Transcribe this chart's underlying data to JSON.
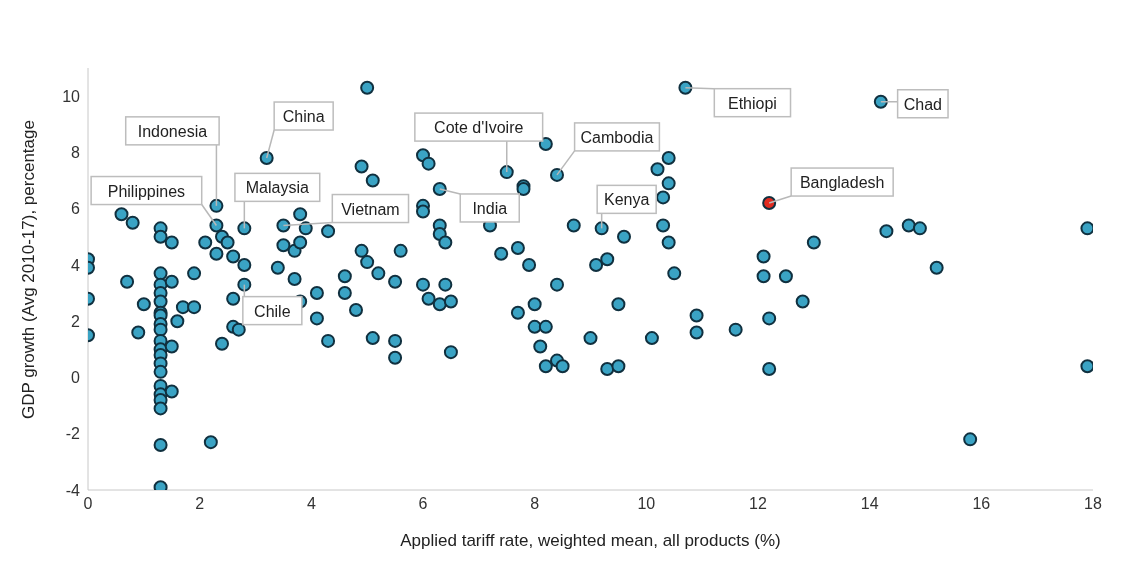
{
  "chart_data": {
    "type": "scatter",
    "xlabel": "Applied tariff rate, weighted mean, all products (%)",
    "ylabel": "GDP growth (Avg 2010-17), percentage",
    "xlim": [
      0,
      18
    ],
    "xticks": [
      0,
      2,
      4,
      6,
      8,
      10,
      12,
      14,
      16,
      18
    ],
    "ylim": [
      -4,
      11
    ],
    "yticks": [
      -4,
      -2,
      0,
      2,
      4,
      6,
      8,
      10
    ],
    "marker": "circle",
    "series": [
      {
        "color": "#3aa3c4",
        "x": [
          0,
          0,
          0,
          0,
          0.6,
          0.8,
          0.7,
          0.9,
          1.0,
          1.3,
          1.3,
          1.3,
          1.3,
          1.3,
          1.3,
          1.3,
          1.3,
          1.3,
          1.3,
          1.3,
          1.3,
          1.3,
          1.3,
          1.3,
          1.3,
          1.3,
          1.3,
          1.3,
          1.3,
          1.3,
          1.5,
          1.5,
          1.5,
          1.5,
          1.6,
          1.7,
          1.9,
          1.9,
          2.2,
          2.3,
          2.3,
          2.1,
          2.4,
          2.5,
          2.3,
          2.6,
          2.8,
          2.6,
          2.4,
          2.6,
          2.7,
          2.8,
          2.8,
          3.2,
          3.5,
          3.8,
          3.9,
          4.3,
          3.5,
          3.7,
          3.8,
          4.9,
          3.4,
          3.7,
          4.1,
          4.1,
          4.3,
          4.6,
          4.6,
          4.8,
          3.8,
          4.9,
          5.0,
          5.1,
          5.0,
          5.2,
          5.5,
          5.6,
          5.1,
          5.5,
          5.5,
          6.0,
          6.1,
          6.0,
          6.0,
          6.3,
          6.3,
          6.3,
          6.4,
          6.0,
          6.4,
          6.1,
          6.3,
          6.5,
          6.5,
          7.2,
          7.4,
          7.5,
          7.7,
          7.8,
          7.8,
          7.9,
          7.7,
          8.0,
          8.0,
          8.2,
          8.1,
          8.2,
          8.4,
          8.5,
          8.2,
          8.4,
          8.4,
          8.7,
          9.2,
          9.6,
          9.1,
          9.3,
          9.5,
          9.0,
          9.3,
          9.5,
          10.2,
          10.4,
          10.4,
          10.3,
          10.3,
          10.4,
          10.5,
          10.1,
          10.7,
          10.9,
          10.9,
          11.6,
          12.1,
          12.1,
          12.5,
          12.8,
          12.2,
          12.2,
          13.0,
          14.2,
          14.3,
          14.7,
          14.9,
          15.2,
          15.8,
          17.9,
          17.9
        ],
        "values": [
          4.2,
          3.9,
          2.8,
          1.5,
          5.8,
          5.5,
          3.4,
          1.6,
          2.6,
          5.3,
          3.7,
          3.3,
          3.0,
          2.7,
          2.3,
          2.2,
          1.9,
          1.7,
          1.3,
          1.0,
          0.8,
          0.5,
          0.2,
          -0.3,
          -0.6,
          -0.8,
          -1.1,
          -2.4,
          -3.9,
          5.0,
          4.8,
          3.4,
          1.1,
          -0.5,
          2.0,
          2.5,
          2.5,
          3.7,
          -2.3,
          6.1,
          5.4,
          4.8,
          5.0,
          4.8,
          4.4,
          4.3,
          5.3,
          2.8,
          1.2,
          1.8,
          1.7,
          4.0,
          3.3,
          7.8,
          5.4,
          5.8,
          5.3,
          5.2,
          4.7,
          4.5,
          4.8,
          4.5,
          3.9,
          3.5,
          3.0,
          2.1,
          1.3,
          3.6,
          3.0,
          2.4,
          2.7,
          7.5,
          10.3,
          7.0,
          4.1,
          3.7,
          3.4,
          4.5,
          1.4,
          1.3,
          0.7,
          7.9,
          7.6,
          6.1,
          5.9,
          6.7,
          5.4,
          5.1,
          4.8,
          3.3,
          3.3,
          2.8,
          2.6,
          2.7,
          0.9,
          5.4,
          4.4,
          7.3,
          4.6,
          6.8,
          6.7,
          4.0,
          2.3,
          2.6,
          1.8,
          1.8,
          1.1,
          0.4,
          0.6,
          0.4,
          8.3,
          7.2,
          3.3,
          5.4,
          5.3,
          5.0,
          4.0,
          4.2,
          2.6,
          1.4,
          0.3,
          0.4,
          7.4,
          7.8,
          6.9,
          6.4,
          5.4,
          4.8,
          3.7,
          1.4,
          10.3,
          2.2,
          1.6,
          1.7,
          4.3,
          3.6,
          3.6,
          2.7,
          2.1,
          0.3,
          4.8,
          9.8,
          5.2,
          5.4,
          5.3,
          3.9,
          -2.2,
          5.3,
          0.4
        ]
      },
      {
        "color": "#e02b20",
        "x": [
          12.2
        ],
        "values": [
          6.2
        ]
      }
    ],
    "annotations": [
      {
        "text": "China",
        "x": 3.2,
        "y": 7.8
      },
      {
        "text": "Indonesia",
        "x": 2.3,
        "y": 6.1
      },
      {
        "text": "Philippines",
        "x": 2.3,
        "y": 5.4
      },
      {
        "text": "Malaysia",
        "x": 2.8,
        "y": 5.3
      },
      {
        "text": "Vietnam",
        "x": 3.5,
        "y": 5.4
      },
      {
        "text": "Chile",
        "x": 2.8,
        "y": 3.3
      },
      {
        "text": "Cote d'Ivoire",
        "x": 7.5,
        "y": 7.3
      },
      {
        "text": "Cambodia",
        "x": 8.4,
        "y": 7.2
      },
      {
        "text": "India",
        "x": 6.3,
        "y": 6.7
      },
      {
        "text": "Kenya",
        "x": 9.2,
        "y": 5.3
      },
      {
        "text": "Ethiopi",
        "x": 10.7,
        "y": 10.3
      },
      {
        "text": "Chad",
        "x": 14.2,
        "y": 9.8
      },
      {
        "text": "Bangladesh",
        "x": 12.2,
        "y": 6.2
      }
    ]
  }
}
